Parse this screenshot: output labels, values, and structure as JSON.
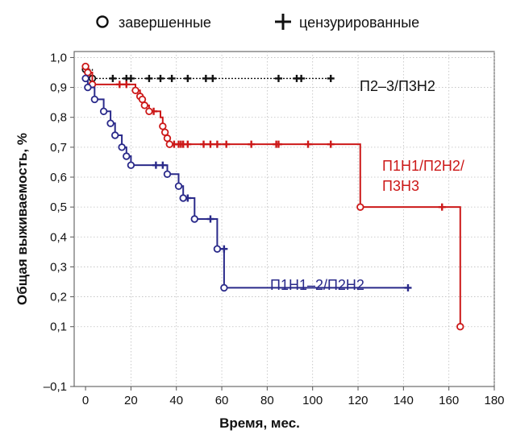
{
  "chart_data": {
    "type": "line",
    "subtype": "kaplan-meier",
    "xlabel": "Время, мес.",
    "ylabel": "Общая выживаемость, %",
    "xlim": [
      -5,
      180
    ],
    "ylim": [
      -0.1,
      1.02
    ],
    "x_ticks": [
      "0",
      "20",
      "40",
      "60",
      "80",
      "100",
      "120",
      "140",
      "160",
      "180"
    ],
    "y_ticks": [
      "–0,1",
      "0,1",
      "0,2",
      "0,3",
      "0,4",
      "0,5",
      "0,6",
      "0,7",
      "0,8",
      "0,9",
      "1,0"
    ],
    "grid": true,
    "legend": {
      "placement": "top",
      "entries": [
        {
          "marker": "circle",
          "label": "завершенные"
        },
        {
          "marker": "plus",
          "label": "цензурированные"
        }
      ]
    },
    "series": [
      {
        "label_lines": [
          "П2–3/П3Н2"
        ],
        "color": "#111111",
        "steps": [
          [
            0,
            0.96
          ],
          [
            3,
            0.93
          ],
          [
            108,
            0.93
          ]
        ],
        "events": [
          [
            0,
            0.96
          ],
          [
            3,
            0.93
          ]
        ],
        "censored": [
          [
            12,
            0.93
          ],
          [
            18,
            0.93
          ],
          [
            20,
            0.93
          ],
          [
            28,
            0.93
          ],
          [
            33,
            0.93
          ],
          [
            38,
            0.93
          ],
          [
            45,
            0.93
          ],
          [
            53,
            0.93
          ],
          [
            56,
            0.93
          ],
          [
            85,
            0.93
          ],
          [
            93,
            0.93
          ],
          [
            95,
            0.93
          ],
          [
            108,
            0.93
          ]
        ]
      },
      {
        "label_lines": [
          "П1Н1/П2Н2/",
          "П3Н3"
        ],
        "color": "#cc1818",
        "steps": [
          [
            0,
            0.97
          ],
          [
            1,
            0.95
          ],
          [
            3,
            0.91
          ],
          [
            21,
            0.91
          ],
          [
            22,
            0.89
          ],
          [
            24,
            0.87
          ],
          [
            25,
            0.86
          ],
          [
            26,
            0.84
          ],
          [
            28,
            0.82
          ],
          [
            33,
            0.8
          ],
          [
            34,
            0.77
          ],
          [
            35,
            0.75
          ],
          [
            36,
            0.73
          ],
          [
            37,
            0.71
          ],
          [
            121,
            0.71
          ],
          [
            121,
            0.5
          ],
          [
            165,
            0.5
          ],
          [
            165,
            0.1
          ]
        ],
        "events": [
          [
            0,
            0.97
          ],
          [
            1,
            0.95
          ],
          [
            3,
            0.91
          ],
          [
            22,
            0.89
          ],
          [
            24,
            0.87
          ],
          [
            25,
            0.86
          ],
          [
            26,
            0.84
          ],
          [
            28,
            0.82
          ],
          [
            34,
            0.77
          ],
          [
            35,
            0.75
          ],
          [
            36,
            0.73
          ],
          [
            37,
            0.71
          ],
          [
            121,
            0.5
          ],
          [
            165,
            0.1
          ]
        ],
        "censored": [
          [
            15,
            0.91
          ],
          [
            18,
            0.91
          ],
          [
            30,
            0.82
          ],
          [
            39,
            0.71
          ],
          [
            41,
            0.71
          ],
          [
            42,
            0.71
          ],
          [
            43,
            0.71
          ],
          [
            45,
            0.71
          ],
          [
            52,
            0.71
          ],
          [
            55,
            0.71
          ],
          [
            58,
            0.71
          ],
          [
            62,
            0.71
          ],
          [
            73,
            0.71
          ],
          [
            84,
            0.71
          ],
          [
            85,
            0.71
          ],
          [
            98,
            0.71
          ],
          [
            108,
            0.71
          ],
          [
            157,
            0.5
          ]
        ]
      },
      {
        "label_lines": [
          "П1Н1–2/П2Н2"
        ],
        "color": "#2a2a8a",
        "steps": [
          [
            0,
            0.93
          ],
          [
            1,
            0.9
          ],
          [
            4,
            0.86
          ],
          [
            8,
            0.82
          ],
          [
            11,
            0.78
          ],
          [
            13,
            0.74
          ],
          [
            16,
            0.7
          ],
          [
            18,
            0.67
          ],
          [
            20,
            0.64
          ],
          [
            36,
            0.64
          ],
          [
            36,
            0.61
          ],
          [
            41,
            0.57
          ],
          [
            43,
            0.53
          ],
          [
            48,
            0.46
          ],
          [
            58,
            0.46
          ],
          [
            58,
            0.36
          ],
          [
            61,
            0.36
          ],
          [
            61,
            0.23
          ],
          [
            142,
            0.23
          ]
        ],
        "events": [
          [
            0,
            0.93
          ],
          [
            1,
            0.9
          ],
          [
            4,
            0.86
          ],
          [
            8,
            0.82
          ],
          [
            11,
            0.78
          ],
          [
            13,
            0.74
          ],
          [
            16,
            0.7
          ],
          [
            18,
            0.67
          ],
          [
            20,
            0.64
          ],
          [
            36,
            0.61
          ],
          [
            41,
            0.57
          ],
          [
            43,
            0.53
          ],
          [
            48,
            0.46
          ],
          [
            58,
            0.36
          ],
          [
            61,
            0.23
          ]
        ],
        "censored": [
          [
            31,
            0.64
          ],
          [
            34,
            0.64
          ],
          [
            45,
            0.53
          ],
          [
            55,
            0.46
          ],
          [
            61,
            0.36
          ],
          [
            142,
            0.23
          ]
        ]
      }
    ]
  }
}
